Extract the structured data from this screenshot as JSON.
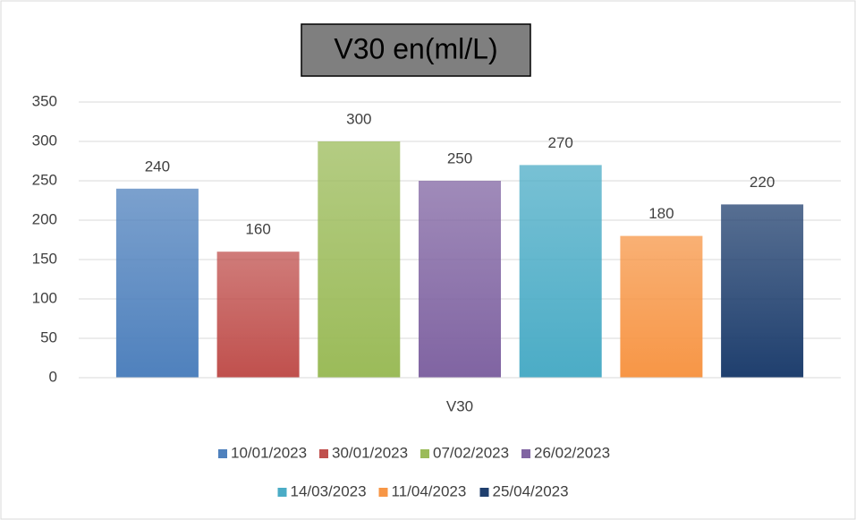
{
  "chart_data": {
    "type": "bar",
    "title": "V30 en(ml/L)",
    "categories": [
      "V30"
    ],
    "series": [
      {
        "name": "10/01/2023",
        "color": "#4f81bd",
        "values": [
          240
        ]
      },
      {
        "name": "30/01/2023",
        "color": "#c0504d",
        "values": [
          160
        ]
      },
      {
        "name": "07/02/2023",
        "color": "#9bbb59",
        "values": [
          300
        ]
      },
      {
        "name": "26/02/2023",
        "color": "#8064a2",
        "values": [
          250
        ]
      },
      {
        "name": "14/03/2023",
        "color": "#4bacc6",
        "values": [
          270
        ]
      },
      {
        "name": "11/04/2023",
        "color": "#f79646",
        "values": [
          180
        ]
      },
      {
        "name": "25/04/2023",
        "color": "#1f3f6e",
        "values": [
          220
        ]
      }
    ],
    "ylim": [
      0,
      350
    ],
    "yticks": [
      0,
      50,
      100,
      150,
      200,
      250,
      300,
      350
    ],
    "grid": true,
    "legend": "bottom"
  }
}
